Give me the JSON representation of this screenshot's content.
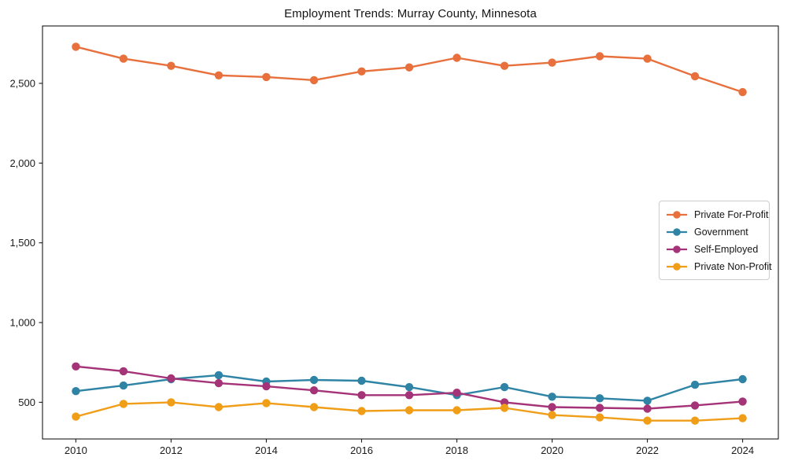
{
  "chart_data": {
    "type": "line",
    "title": "Employment Trends: Murray County, Minnesota",
    "x": [
      2010,
      2011,
      2012,
      2013,
      2014,
      2015,
      2016,
      2017,
      2018,
      2019,
      2020,
      2021,
      2022,
      2023,
      2024
    ],
    "series": [
      {
        "name": "Private For-Profit",
        "color": "#E7703C",
        "values": [
          2730,
          2655,
          2610,
          2550,
          2540,
          2520,
          2575,
          2600,
          2660,
          2610,
          2630,
          2670,
          2655,
          2545,
          2445
        ]
      },
      {
        "name": "Government",
        "color": "#2F84A5",
        "values": [
          570,
          605,
          645,
          670,
          630,
          640,
          635,
          595,
          545,
          595,
          535,
          525,
          510,
          610,
          645
        ]
      },
      {
        "name": "Self-Employed",
        "color": "#A53377",
        "values": [
          725,
          695,
          650,
          620,
          600,
          575,
          545,
          545,
          560,
          500,
          470,
          465,
          460,
          480,
          505
        ]
      },
      {
        "name": "Private Non-Profit",
        "color": "#F09D18",
        "values": [
          410,
          490,
          500,
          470,
          495,
          470,
          445,
          450,
          450,
          465,
          420,
          405,
          385,
          385,
          400
        ]
      }
    ],
    "xticks": [
      2010,
      2012,
      2014,
      2016,
      2018,
      2020,
      2022,
      2024
    ],
    "xtick_labels": [
      "2010",
      "2012",
      "2014",
      "2016",
      "2018",
      "2020",
      "2022",
      "2024"
    ],
    "yticks": [
      500,
      1000,
      1500,
      2000,
      2500
    ],
    "ytick_labels": [
      "500",
      "1,000",
      "1,500",
      "2,000",
      "2,500"
    ],
    "xlim": [
      2009.3,
      2024.75
    ],
    "ylim": [
      270,
      2860
    ],
    "grid": false,
    "legend_position": "center-right",
    "marker": "circle",
    "axis_color": "#1a1a1a"
  }
}
